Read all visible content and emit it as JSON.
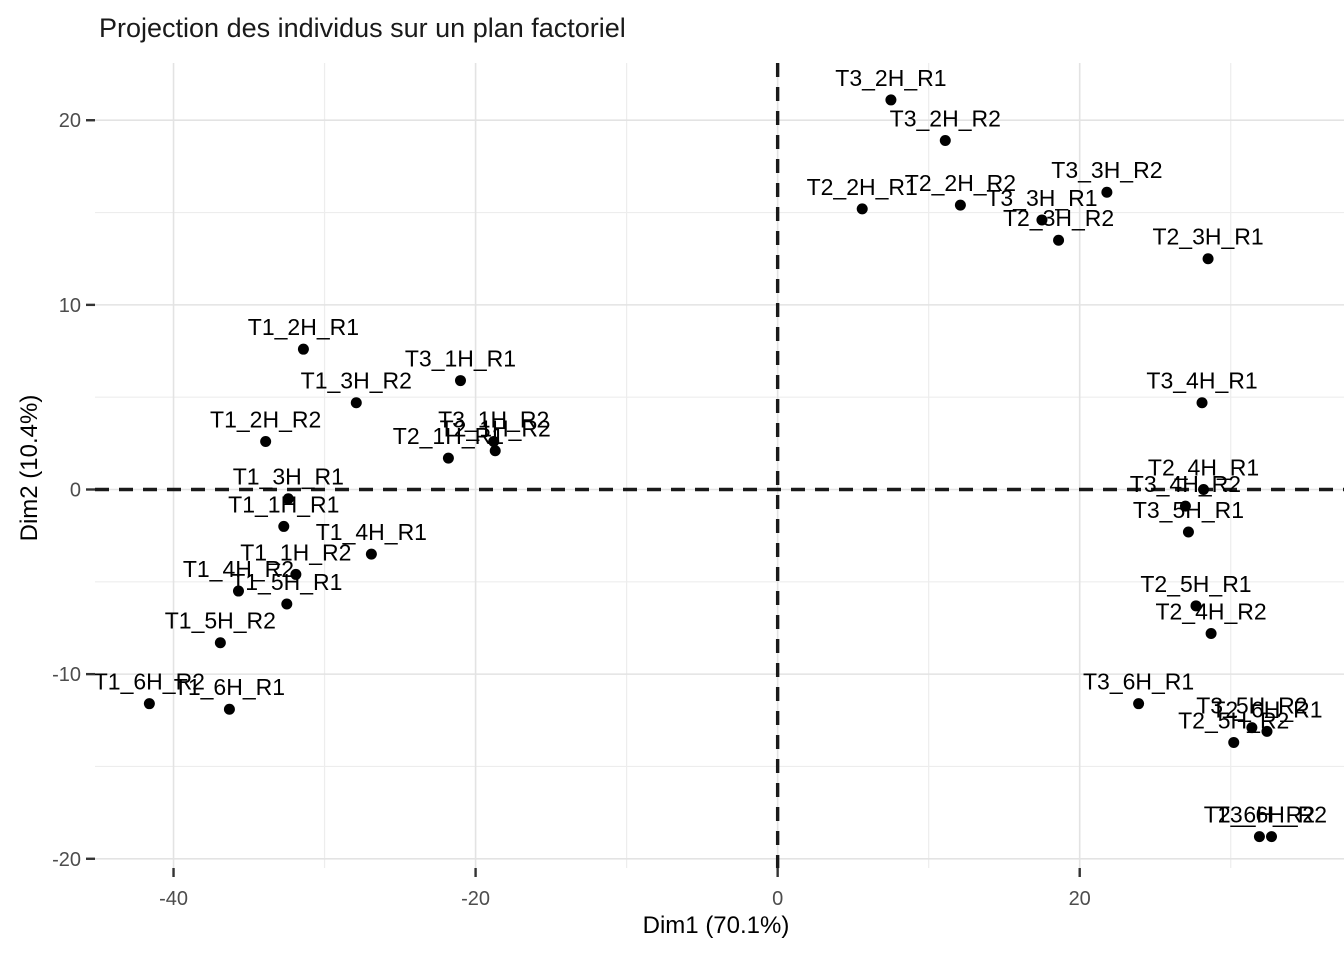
{
  "chart_data": {
    "type": "scatter",
    "title": "Projection des individus sur un plan factoriel",
    "xlabel": "Dim1 (70.1%)",
    "ylabel": "Dim2 (10.4%)",
    "xlim": [
      -45.2,
      37.5
    ],
    "ylim": [
      -20.5,
      23.1
    ],
    "x_ticks": [
      -40,
      -20,
      0,
      20
    ],
    "y_ticks": [
      -20,
      -10,
      0,
      10,
      20
    ],
    "x_minor_ticks": [
      -30,
      -10,
      10,
      30
    ],
    "y_minor_ticks": [
      -15,
      -5,
      5,
      15
    ],
    "grid": true,
    "legend_position": "none",
    "reference_lines": {
      "vertical_x": 0,
      "horizontal_y": 0,
      "style": "dashed"
    },
    "points": [
      {
        "label": "T1_1H_R1",
        "x": -32.7,
        "y": -2.0
      },
      {
        "label": "T1_1H_R2",
        "x": -31.9,
        "y": -4.6
      },
      {
        "label": "T1_2H_R1",
        "x": -31.4,
        "y": 7.6
      },
      {
        "label": "T1_2H_R2",
        "x": -33.9,
        "y": 2.6
      },
      {
        "label": "T1_3H_R1",
        "x": -32.4,
        "y": -0.5
      },
      {
        "label": "T1_3H_R2",
        "x": -27.9,
        "y": 4.7
      },
      {
        "label": "T1_4H_R1",
        "x": -26.9,
        "y": -3.5
      },
      {
        "label": "T1_4H_R2",
        "x": -35.7,
        "y": -5.5
      },
      {
        "label": "T1_5H_R1",
        "x": -32.5,
        "y": -6.2
      },
      {
        "label": "T1_5H_R2",
        "x": -36.9,
        "y": -8.3
      },
      {
        "label": "T1_6H_R1",
        "x": -36.3,
        "y": -11.9
      },
      {
        "label": "T1_6H_R2",
        "x": -41.6,
        "y": -11.6
      },
      {
        "label": "T2_1H_R1",
        "x": -21.8,
        "y": 1.7
      },
      {
        "label": "T2_1H_R2",
        "x": -18.7,
        "y": 2.1
      },
      {
        "label": "T2_2H_R1",
        "x": 5.6,
        "y": 15.2
      },
      {
        "label": "T2_2H_R2",
        "x": 12.1,
        "y": 15.4
      },
      {
        "label": "T2_3H_R1",
        "x": 28.5,
        "y": 12.5
      },
      {
        "label": "T2_3H_R2",
        "x": 18.6,
        "y": 13.5
      },
      {
        "label": "T2_4H_R1",
        "x": 28.2,
        "y": 0.0
      },
      {
        "label": "T2_4H_R2",
        "x": 28.7,
        "y": -7.8
      },
      {
        "label": "T2_5H_R1",
        "x": 27.7,
        "y": -6.3
      },
      {
        "label": "T2_5H_R2",
        "x": 30.2,
        "y": -13.7
      },
      {
        "label": "T2_6H_R1",
        "x": 32.4,
        "y": -13.1
      },
      {
        "label": "T2_6H_R2",
        "x": 31.9,
        "y": -18.8
      },
      {
        "label": "T3_1H_R1",
        "x": -21.0,
        "y": 5.9
      },
      {
        "label": "T3_1H_R2",
        "x": -18.8,
        "y": 2.6
      },
      {
        "label": "T3_2H_R1",
        "x": 7.5,
        "y": 21.1
      },
      {
        "label": "T3_2H_R2",
        "x": 11.1,
        "y": 18.9
      },
      {
        "label": "T3_3H_R1",
        "x": 17.5,
        "y": 14.6
      },
      {
        "label": "T3_3H_R2",
        "x": 21.8,
        "y": 16.1
      },
      {
        "label": "T3_4H_R1",
        "x": 28.1,
        "y": 4.7
      },
      {
        "label": "T3_4H_R2",
        "x": 27.0,
        "y": -0.9
      },
      {
        "label": "T3_5H_R1",
        "x": 27.2,
        "y": -2.3
      },
      {
        "label": "T3_5H_R2",
        "x": 31.4,
        "y": -12.9
      },
      {
        "label": "T3_6H_R1",
        "x": 23.9,
        "y": -11.6
      },
      {
        "label": "T3_6H_R2",
        "x": 32.7,
        "y": -18.8
      }
    ],
    "style": {
      "point_color": "#000000",
      "label_color": "#000000",
      "title_color": "#1a1a1a",
      "axis_title_color": "#000000",
      "tick_label_color": "#4d4d4d",
      "tick_mark_color": "#333333",
      "grid_major_color": "#e3e3e3",
      "grid_minor_color": "#ededed",
      "reference_line_color": "#1a1a1a",
      "background_color": "#ffffff"
    }
  }
}
